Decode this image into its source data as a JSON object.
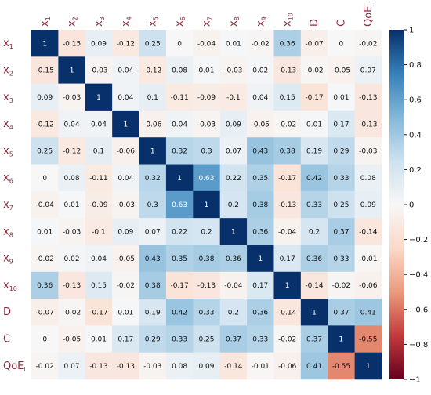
{
  "chart_data": {
    "type": "heatmap",
    "title": "",
    "xlabel": "",
    "ylabel": "",
    "labels": [
      {
        "base": "x",
        "sub": "1"
      },
      {
        "base": "x",
        "sub": "2"
      },
      {
        "base": "x",
        "sub": "3"
      },
      {
        "base": "x",
        "sub": "4"
      },
      {
        "base": "x",
        "sub": "5"
      },
      {
        "base": "x",
        "sub": "6"
      },
      {
        "base": "x",
        "sub": "7"
      },
      {
        "base": "x",
        "sub": "8"
      },
      {
        "base": "x",
        "sub": "9"
      },
      {
        "base": "x",
        "sub": "10"
      },
      {
        "base": "D",
        "sub": ""
      },
      {
        "base": "C",
        "sub": ""
      },
      {
        "base": "QoE",
        "sub": "i"
      }
    ],
    "values": [
      [
        1,
        -0.15,
        0.09,
        -0.12,
        0.25,
        0,
        -0.04,
        0.01,
        -0.02,
        0.36,
        -0.07,
        0,
        -0.02
      ],
      [
        -0.15,
        1,
        -0.03,
        0.04,
        -0.12,
        0.08,
        0.01,
        -0.03,
        0.02,
        -0.13,
        -0.02,
        -0.05,
        0.07
      ],
      [
        0.09,
        -0.03,
        1,
        0.04,
        0.1,
        -0.11,
        -0.09,
        -0.1,
        0.04,
        0.15,
        -0.17,
        0.01,
        -0.13
      ],
      [
        -0.12,
        0.04,
        0.04,
        1,
        -0.06,
        0.04,
        -0.03,
        0.09,
        -0.05,
        -0.02,
        0.01,
        0.17,
        -0.13
      ],
      [
        0.25,
        -0.12,
        0.1,
        -0.06,
        1,
        0.32,
        0.3,
        0.07,
        0.43,
        0.38,
        0.19,
        0.29,
        -0.03
      ],
      [
        0,
        0.08,
        -0.11,
        0.04,
        0.32,
        1,
        0.63,
        0.22,
        0.35,
        -0.17,
        0.42,
        0.33,
        0.08
      ],
      [
        -0.04,
        0.01,
        -0.09,
        -0.03,
        0.3,
        0.63,
        1,
        0.2,
        0.38,
        -0.13,
        0.33,
        0.25,
        0.09
      ],
      [
        0.01,
        -0.03,
        -0.1,
        0.09,
        0.07,
        0.22,
        0.2,
        1,
        0.36,
        -0.04,
        0.2,
        0.37,
        -0.14
      ],
      [
        -0.02,
        0.02,
        0.04,
        -0.05,
        0.43,
        0.35,
        0.38,
        0.36,
        1,
        0.17,
        0.36,
        0.33,
        -0.01
      ],
      [
        0.36,
        -0.13,
        0.15,
        -0.02,
        0.38,
        -0.17,
        -0.13,
        -0.04,
        0.17,
        1,
        -0.14,
        -0.02,
        -0.06
      ],
      [
        -0.07,
        -0.02,
        -0.17,
        0.01,
        0.19,
        0.42,
        0.33,
        0.2,
        0.36,
        -0.14,
        1,
        0.37,
        0.41
      ],
      [
        0,
        -0.05,
        0.01,
        0.17,
        0.29,
        0.33,
        0.25,
        0.37,
        0.33,
        -0.02,
        0.37,
        1,
        -0.55
      ],
      [
        -0.02,
        0.07,
        -0.13,
        -0.13,
        -0.03,
        0.08,
        0.09,
        -0.14,
        -0.01,
        -0.06,
        0.41,
        -0.55,
        1
      ]
    ],
    "vmin": -1,
    "vmax": 1,
    "colorbar": {
      "ticks": [
        -1,
        -0.8,
        -0.6,
        -0.4,
        -0.2,
        0,
        0.2,
        0.4,
        0.6,
        0.8,
        1
      ],
      "tick_labels": [
        "−1",
        "−0.8",
        "−0.6",
        "−0.4",
        "−0.2",
        "0",
        "0.2",
        "0.4",
        "0.6",
        "0.8",
        "1"
      ]
    },
    "colormap": {
      "name": "RdBu",
      "stops": [
        {
          "v": -1,
          "color": "#67001f"
        },
        {
          "v": -0.75,
          "color": "#c23a3a"
        },
        {
          "v": -0.5,
          "color": "#ec9a7c"
        },
        {
          "v": -0.25,
          "color": "#fbd9c8"
        },
        {
          "v": 0,
          "color": "#f7f7f7"
        },
        {
          "v": 0.25,
          "color": "#cde1ef"
        },
        {
          "v": 0.5,
          "color": "#82b8d9"
        },
        {
          "v": 0.75,
          "color": "#3580ba"
        },
        {
          "v": 1,
          "color": "#08306b"
        }
      ]
    },
    "label_color": "#8b2a3a",
    "grid": false,
    "legend": "right"
  }
}
